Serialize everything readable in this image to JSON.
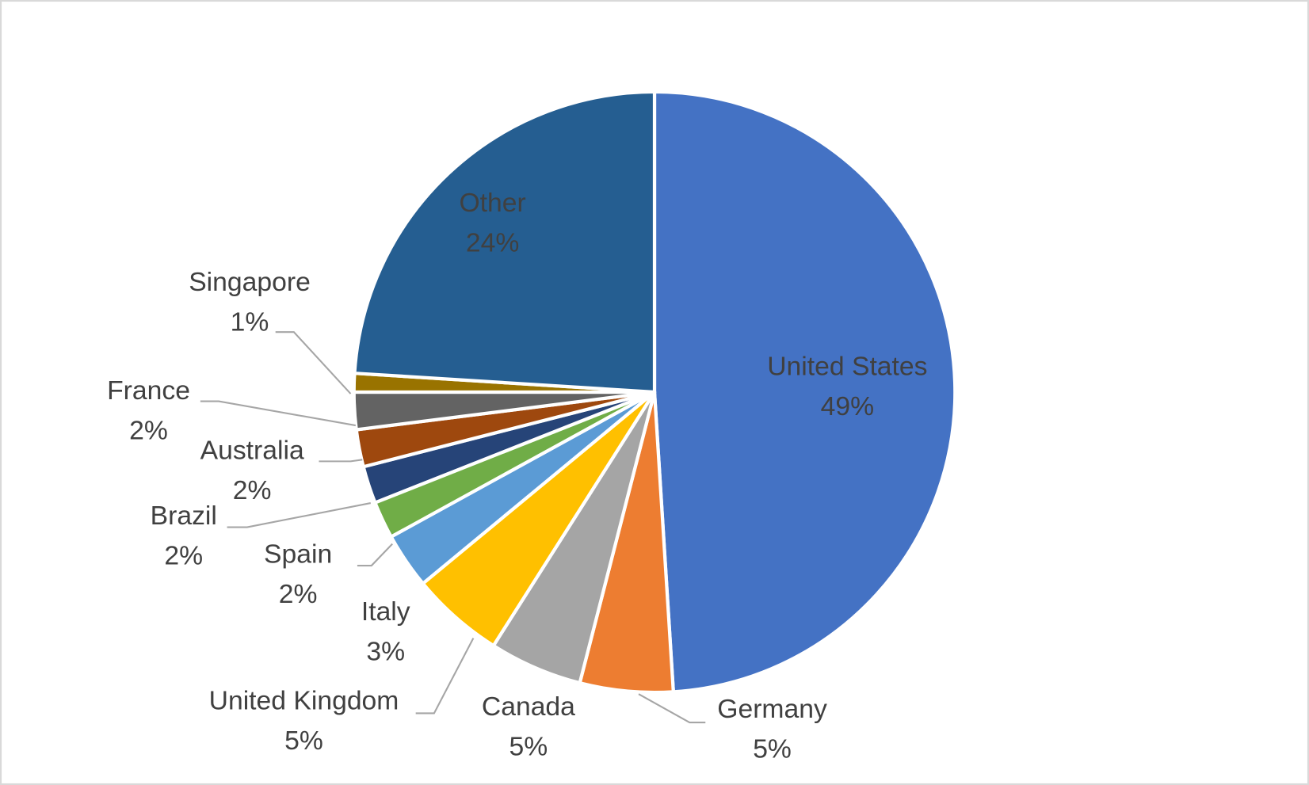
{
  "chart_data": {
    "type": "pie",
    "categories": [
      "United States",
      "Germany",
      "Canada",
      "United Kingdom",
      "Italy",
      "Spain",
      "Brazil",
      "Australia",
      "France",
      "Singapore",
      "Other"
    ],
    "values": [
      49,
      5,
      5,
      5,
      3,
      2,
      2,
      2,
      2,
      1,
      24
    ],
    "value_labels": [
      "49%",
      "5%",
      "5%",
      "5%",
      "3%",
      "2%",
      "2%",
      "2%",
      "2%",
      "1%",
      "24%"
    ],
    "colors": [
      "#4472c4",
      "#ed7d31",
      "#a5a5a5",
      "#ffc000",
      "#5b9bd5",
      "#70ad47",
      "#264478",
      "#9e480e",
      "#636363",
      "#997300",
      "#255e91"
    ]
  }
}
